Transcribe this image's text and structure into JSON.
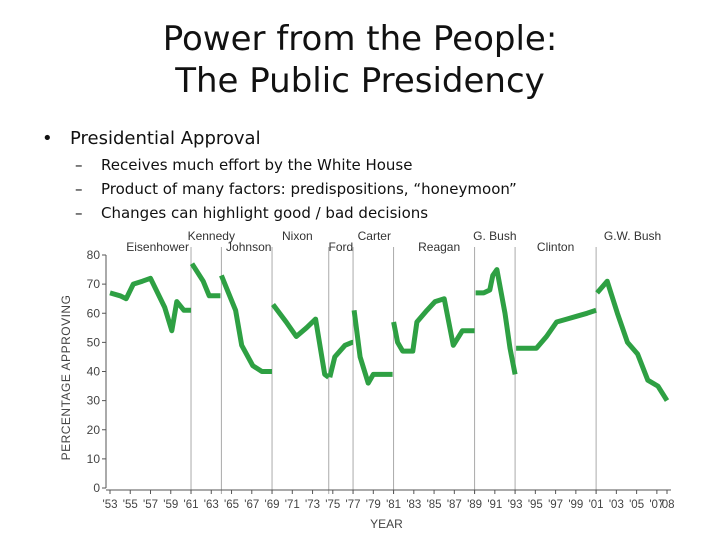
{
  "slide": {
    "title_line1": "Power from the People:",
    "title_line2": "The Public Presidency",
    "bullet": "Presidential Approval",
    "bullet_marker": "•",
    "sub_marker": "–",
    "sub_points": [
      "Receives much effort by the White House",
      "Product of many factors: predispositions, “honeymoon”",
      "Changes can highlight good / bad decisions"
    ]
  },
  "chart_data": {
    "type": "line",
    "ylabel": "PERCENTAGE APPROVING",
    "xlabel": "YEAR",
    "ylim": [
      0,
      80
    ],
    "xlim": [
      1953,
      2008
    ],
    "yticks": [
      0,
      10,
      20,
      30,
      40,
      50,
      60,
      70,
      80
    ],
    "xticks": [
      "'53",
      "'55",
      "'57",
      "'59",
      "'61",
      "'63",
      "'65",
      "'67",
      "'69",
      "'71",
      "'73",
      "'75",
      "'77",
      "'79",
      "'81",
      "'83",
      "'85",
      "'87",
      "'89",
      "'91",
      "'93",
      "'95",
      "'97",
      "'99",
      "'01",
      "'03",
      "'05",
      "'07",
      "'08"
    ],
    "xtick_years": [
      1953,
      1955,
      1957,
      1959,
      1961,
      1963,
      1965,
      1967,
      1969,
      1971,
      1973,
      1975,
      1977,
      1979,
      1981,
      1983,
      1985,
      1987,
      1989,
      1991,
      1993,
      1995,
      1997,
      1999,
      2001,
      2003,
      2005,
      2007,
      2008
    ],
    "line_color": "#2ea043",
    "divider_color": "#aaaaaa",
    "series": [
      {
        "name": "Eisenhower",
        "points": [
          [
            1953.0,
            67
          ],
          [
            1954.0,
            66
          ],
          [
            1954.6,
            65
          ],
          [
            1955.3,
            70
          ],
          [
            1956.2,
            71
          ],
          [
            1957.0,
            72
          ],
          [
            1958.4,
            62
          ],
          [
            1959.1,
            54
          ],
          [
            1959.6,
            64
          ],
          [
            1960.3,
            61
          ],
          [
            1961.0,
            61
          ]
        ]
      },
      {
        "name": "Kennedy",
        "points": [
          [
            1961.1,
            77
          ],
          [
            1962.2,
            71
          ],
          [
            1962.8,
            66
          ],
          [
            1963.9,
            66
          ]
        ]
      },
      {
        "name": "Johnson",
        "points": [
          [
            1964.0,
            73
          ],
          [
            1964.7,
            67
          ],
          [
            1965.4,
            61
          ],
          [
            1966.0,
            49
          ],
          [
            1967.1,
            42
          ],
          [
            1968.0,
            40
          ],
          [
            1969.0,
            40
          ]
        ]
      },
      {
        "name": "Nixon",
        "points": [
          [
            1969.1,
            63
          ],
          [
            1970.4,
            57
          ],
          [
            1971.4,
            52
          ],
          [
            1972.4,
            55
          ],
          [
            1973.3,
            58
          ],
          [
            1974.2,
            39
          ],
          [
            1974.6,
            38
          ]
        ]
      },
      {
        "name": "Ford",
        "points": [
          [
            1974.7,
            38
          ],
          [
            1975.2,
            45
          ],
          [
            1976.2,
            49
          ],
          [
            1976.9,
            50
          ],
          [
            1977.0,
            50
          ]
        ]
      },
      {
        "name": "Carter",
        "points": [
          [
            1977.1,
            61
          ],
          [
            1977.7,
            45
          ],
          [
            1978.5,
            36
          ],
          [
            1979.0,
            39
          ],
          [
            1980.1,
            39
          ],
          [
            1980.9,
            39
          ]
        ]
      },
      {
        "name": "Reagan",
        "points": [
          [
            1981.0,
            57
          ],
          [
            1981.4,
            50
          ],
          [
            1981.9,
            47
          ],
          [
            1982.9,
            47
          ],
          [
            1983.3,
            57
          ],
          [
            1984.3,
            61
          ],
          [
            1985.1,
            64
          ],
          [
            1986.0,
            65
          ],
          [
            1986.9,
            49
          ],
          [
            1987.8,
            54
          ],
          [
            1989.0,
            54
          ]
        ]
      },
      {
        "name": "G. Bush",
        "points": [
          [
            1989.1,
            67
          ],
          [
            1989.9,
            67
          ],
          [
            1990.5,
            68
          ],
          [
            1990.8,
            73
          ],
          [
            1991.2,
            75
          ],
          [
            1992.0,
            60
          ],
          [
            1992.5,
            48
          ],
          [
            1993.0,
            39
          ]
        ]
      },
      {
        "name": "Clinton",
        "points": [
          [
            1993.1,
            48
          ],
          [
            1994.1,
            48
          ],
          [
            1995.1,
            48
          ],
          [
            1996.1,
            52
          ],
          [
            1997.1,
            57
          ],
          [
            1998.1,
            58
          ],
          [
            1999.1,
            59
          ],
          [
            2000.1,
            60
          ],
          [
            2001.0,
            61
          ]
        ]
      },
      {
        "name": "G.W. Bush",
        "points": [
          [
            2001.1,
            67
          ],
          [
            2002.1,
            71
          ],
          [
            2003.1,
            60
          ],
          [
            2004.1,
            50
          ],
          [
            2005.1,
            46
          ],
          [
            2006.1,
            37
          ],
          [
            2007.1,
            35
          ],
          [
            2008.0,
            30
          ]
        ]
      }
    ],
    "president_labels": [
      {
        "name": "Eisenhower",
        "year": 1957.7,
        "row": "low"
      },
      {
        "name": "Kennedy",
        "year": 1963.0,
        "row": "high"
      },
      {
        "name": "Johnson",
        "year": 1966.7,
        "row": "low"
      },
      {
        "name": "Nixon",
        "year": 1971.5,
        "row": "high"
      },
      {
        "name": "Ford",
        "year": 1975.8,
        "row": "low"
      },
      {
        "name": "Carter",
        "year": 1979.1,
        "row": "high"
      },
      {
        "name": "Reagan",
        "year": 1985.5,
        "row": "low"
      },
      {
        "name": "G. Bush",
        "year": 1991.0,
        "row": "high"
      },
      {
        "name": "Clinton",
        "year": 1997.0,
        "row": "low"
      },
      {
        "name": "G.W. Bush",
        "year": 2004.6,
        "row": "high"
      }
    ],
    "term_boundaries": [
      1961,
      1964,
      1969,
      1974.6,
      1977,
      1981,
      1989,
      1993,
      2001
    ],
    "grid": false
  }
}
